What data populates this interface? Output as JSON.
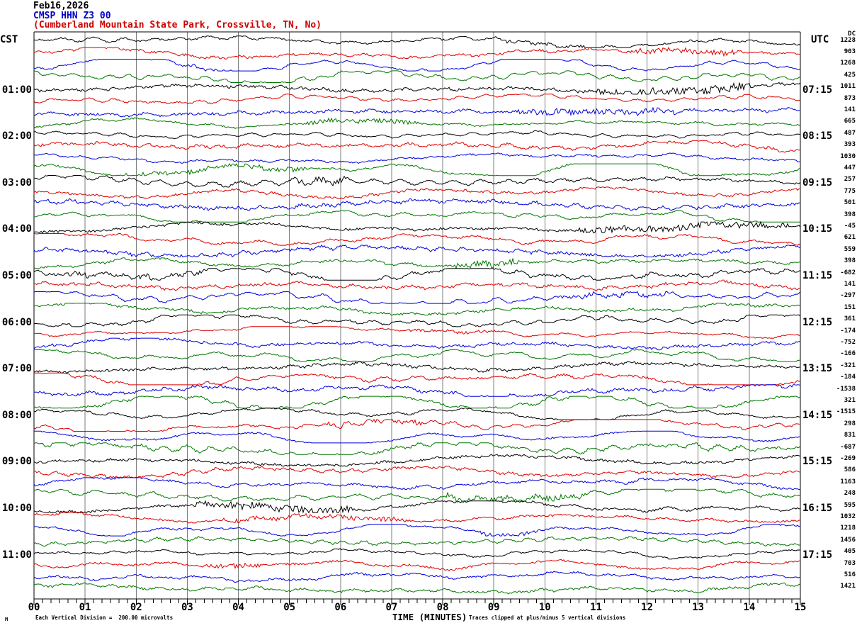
{
  "header": {
    "date_line": "Feb16,2026",
    "station_line": "CMSP HHN Z3 00",
    "location_line": "(Cumberland Mountain State Park, Crossville, TN, No)",
    "station_line_color": "#0000cc",
    "location_line_color": "#cc0000"
  },
  "footer": {
    "mark": "M",
    "mark_color": "#000000"
  },
  "chart_data": {
    "type": "line",
    "subtype": "helicorder_seismogram",
    "timezone_left": "CST",
    "timezone_right": "UTC",
    "dc_header": "DC",
    "minutes_per_line": 15,
    "lines_per_hour": 4,
    "num_traces": 48,
    "grid": true,
    "x_range_minutes": [
      0,
      15
    ],
    "xlabel": "TIME (MINUTES)",
    "x_tick_labels": [
      "00",
      "01",
      "02",
      "03",
      "04",
      "05",
      "06",
      "07",
      "08",
      "09",
      "10",
      "11",
      "12",
      "13",
      "14",
      "15"
    ],
    "hour_labels_cst": [
      "01:00",
      "02:00",
      "03:00",
      "04:00",
      "05:00",
      "06:00",
      "07:00",
      "08:00",
      "09:00",
      "10:00",
      "11:00"
    ],
    "hour_labels_utc": [
      "07:15",
      "08:15",
      "09:15",
      "10:15",
      "11:15",
      "12:15",
      "13:15",
      "14:15",
      "15:15",
      "16:15",
      "17:15"
    ],
    "dc_offsets": [
      1228,
      903,
      1268,
      425,
      1011,
      873,
      141,
      665,
      487,
      393,
      1030,
      447,
      257,
      775,
      501,
      398,
      -45,
      621,
      559,
      398,
      -682,
      141,
      -297,
      151,
      361,
      -174,
      -752,
      -166,
      -321,
      -184,
      -1538,
      321,
      -1515,
      298,
      831,
      -687,
      -269,
      586,
      1163,
      248,
      595,
      1032,
      1218,
      1456,
      405,
      703,
      516,
      1421
    ],
    "trace_color_cycle": [
      "#000000",
      "#dd0000",
      "#0000dd",
      "#007700"
    ],
    "grid_color": "#7b7b7b",
    "border_color": "#000000",
    "microvolts_per_division": 200.0,
    "clip_divisions": 5,
    "annotations": {
      "scale_note": "Each Vertical Division =  200.00 microvolts",
      "clip_note": "Traces clipped at plus/minus 5 vertical divisions"
    }
  }
}
